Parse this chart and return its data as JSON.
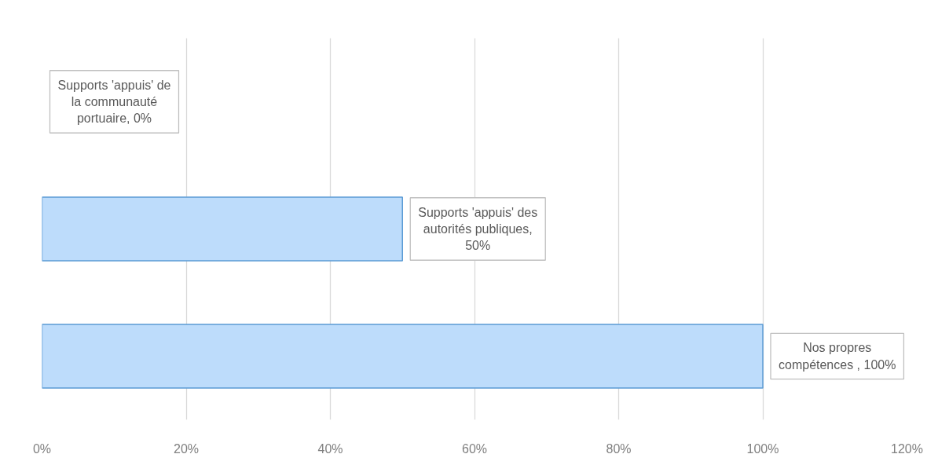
{
  "chart_data": {
    "type": "bar",
    "orientation": "horizontal",
    "categories": [
      null,
      null,
      null
    ],
    "values": [
      0,
      50,
      100
    ],
    "color": "#bddcfb",
    "value_labels": [
      "Supports 'appuis' de la communauté portuaire, 0%",
      "Supports 'appuis' des autorités publiques, 50%",
      "Nos propres compétences , 100%"
    ],
    "xlim": [
      0,
      120
    ],
    "xticks": [
      {
        "value": 0,
        "label": "0%"
      },
      {
        "value": 20,
        "label": "20%"
      },
      {
        "value": 40,
        "label": "40%"
      },
      {
        "value": 60,
        "label": "60%"
      },
      {
        "value": 80,
        "label": "80%"
      },
      {
        "value": 100,
        "label": "100%"
      },
      {
        "value": 120,
        "label": "120%"
      }
    ],
    "grid": "x"
  }
}
